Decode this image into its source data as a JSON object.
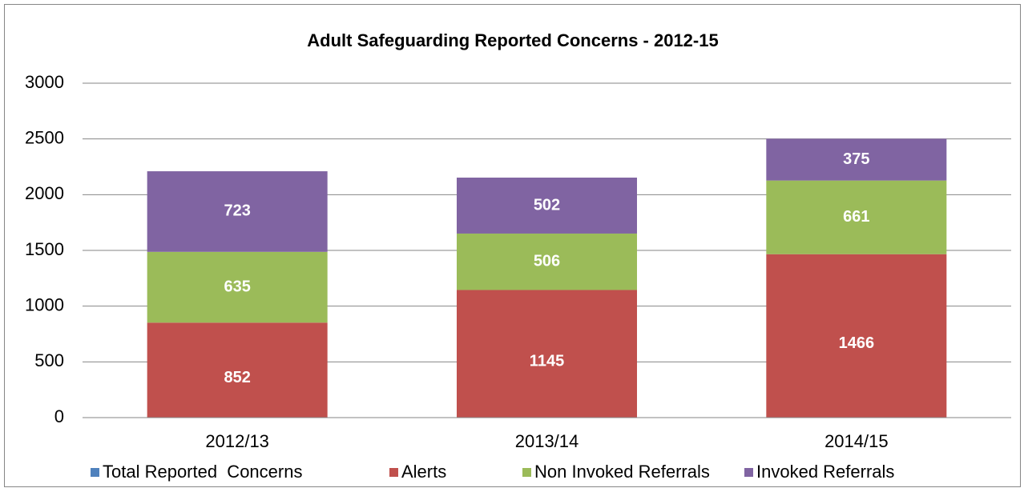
{
  "chart_data": {
    "type": "stacked_bar",
    "title": "Adult Safeguarding Reported Concerns - 2012-15",
    "categories": [
      "2012/13",
      "2013/14",
      "2014/15"
    ],
    "series": [
      {
        "name": "Total Reported  Concerns",
        "color": "#4f81bd",
        "values": [
          null,
          null,
          null
        ]
      },
      {
        "name": "Alerts",
        "color": "#c0504d",
        "values": [
          852,
          1145,
          1466
        ]
      },
      {
        "name": "Non Invoked Referrals",
        "color": "#9bbb59",
        "values": [
          635,
          506,
          661
        ]
      },
      {
        "name": "Invoked Referrals",
        "color": "#8064a2",
        "values": [
          723,
          502,
          375
        ]
      }
    ],
    "ylim": [
      0,
      3000
    ],
    "yticks": [
      0,
      500,
      1000,
      1500,
      2000,
      2500,
      3000
    ],
    "grid": true,
    "legend": "bottom"
  }
}
